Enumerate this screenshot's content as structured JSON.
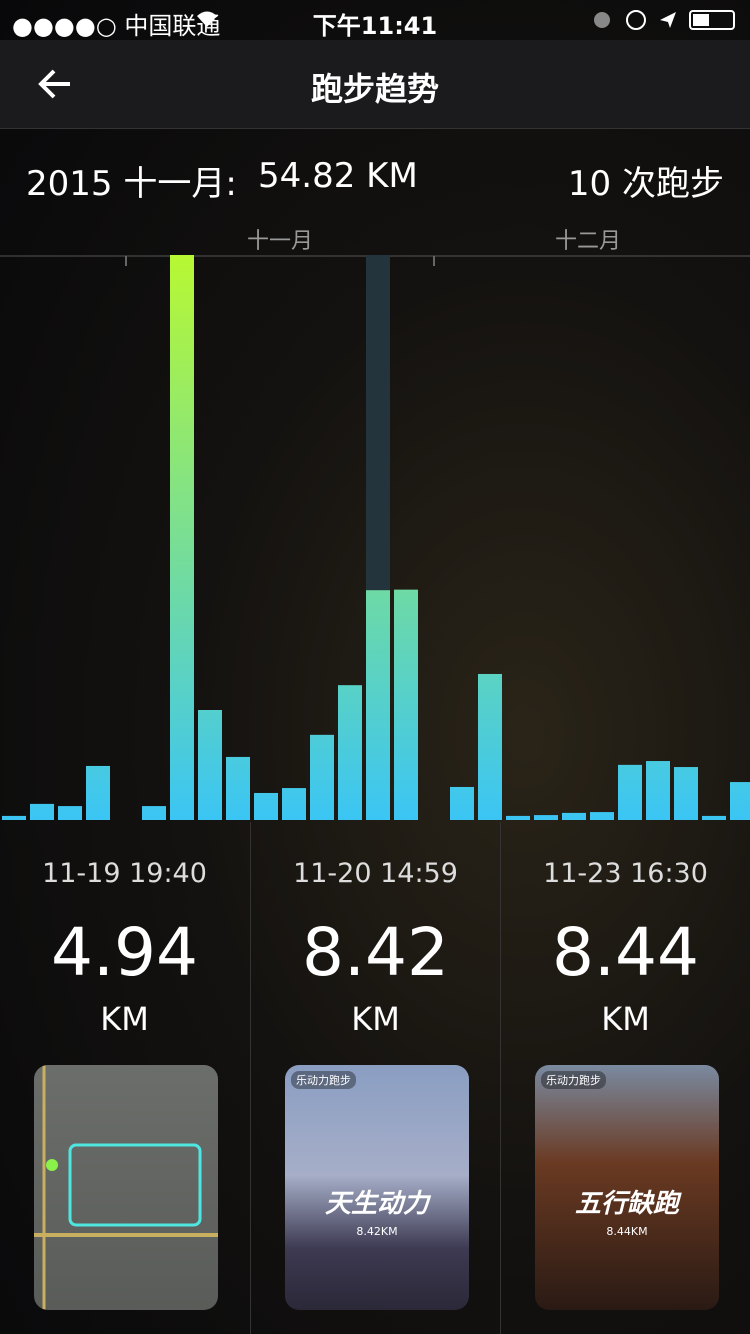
{
  "status_bar": {
    "carrier": "●●●●○ 中国联通",
    "time": "下午11:41"
  },
  "nav": {
    "title": "跑步趋势"
  },
  "summary": {
    "month": "2015 十一月:",
    "distance": "54.82 KM",
    "runs": "10 次跑步"
  },
  "chart_data": {
    "type": "bar",
    "month_labels": [
      "十一月",
      "十二月"
    ],
    "values": [
      0.15,
      0.59,
      0.51,
      1.98,
      null,
      0.51,
      20.7,
      4.03,
      2.31,
      0.99,
      1.17,
      3.12,
      4.94,
      8.42,
      8.44,
      null,
      1.21,
      5.35,
      0.15,
      0.18,
      0.26,
      0.29,
      2.02,
      2.16,
      1.94,
      0.15,
      1.39
    ],
    "gradient": [
      "#3bc5f4",
      "#b8f832"
    ],
    "selected": 13,
    "selected_color": "#23343c"
  },
  "runs": [
    {
      "time": "11-19 19:40",
      "distance": "4.94",
      "unit": "KM"
    },
    {
      "time": "11-20 14:59",
      "distance": "8.42",
      "unit": "KM",
      "badge": "乐动力跑步",
      "caption": "天生动力",
      "sub": "8.42KM"
    },
    {
      "time": "11-23 16:30",
      "distance": "8.44",
      "unit": "KM",
      "badge": "乐动力跑步",
      "caption": "五行缺跑",
      "sub": "8.44KM"
    }
  ]
}
